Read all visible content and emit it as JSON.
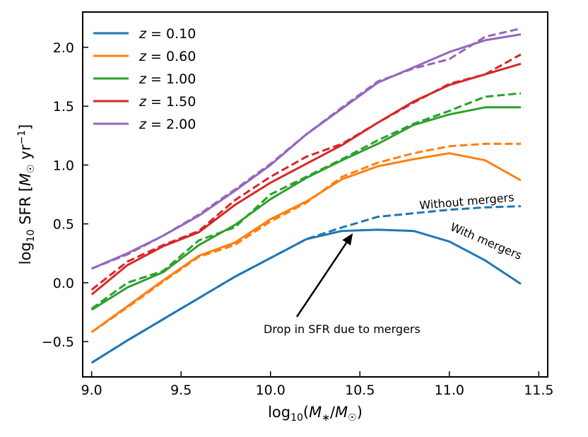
{
  "chart_data": {
    "type": "line",
    "xlabel": "log₁₀(M*/M☉)",
    "ylabel": "log₁₀ SFR [M☉ yr⁻¹]",
    "xlim": [
      8.95,
      11.55
    ],
    "ylim": [
      -0.8,
      2.3
    ],
    "xticks": [
      9.0,
      9.5,
      10.0,
      10.5,
      11.0,
      11.5
    ],
    "xtick_labels": [
      "9.0",
      "9.5",
      "10.0",
      "10.5",
      "11.0",
      "11.5"
    ],
    "yticks": [
      -0.5,
      0.0,
      0.5,
      1.0,
      1.5,
      2.0
    ],
    "ytick_labels": [
      "−0.5",
      "0.0",
      "0.5",
      "1.0",
      "1.5",
      "2.0"
    ],
    "grid": false,
    "legend_position": "top-left",
    "x": [
      9.0,
      9.2,
      9.4,
      9.6,
      9.8,
      10.0,
      10.2,
      10.4,
      10.6,
      10.8,
      11.0,
      11.2,
      11.4
    ],
    "series": [
      {
        "name": "z = 0.10",
        "color": "#1f77b4",
        "with_mergers": [
          -0.68,
          -0.49,
          -0.31,
          -0.13,
          0.05,
          0.21,
          0.37,
          0.44,
          0.45,
          0.44,
          0.35,
          0.19,
          -0.01
        ],
        "without_mergers": [
          -0.68,
          -0.49,
          -0.31,
          -0.13,
          0.05,
          0.21,
          0.37,
          0.47,
          0.56,
          0.59,
          0.62,
          0.64,
          0.65
        ]
      },
      {
        "name": "z = 0.60",
        "color": "#ff7f0e",
        "with_mergers": [
          -0.42,
          -0.2,
          0.02,
          0.23,
          0.34,
          0.54,
          0.69,
          0.88,
          0.99,
          1.05,
          1.1,
          1.04,
          0.87
        ],
        "without_mergers": [
          -0.42,
          -0.21,
          0.01,
          0.22,
          0.32,
          0.52,
          0.68,
          0.9,
          1.02,
          1.1,
          1.16,
          1.18,
          1.18
        ]
      },
      {
        "name": "z = 1.00",
        "color": "#2ca02c",
        "with_mergers": [
          -0.23,
          -0.04,
          0.09,
          0.32,
          0.49,
          0.71,
          0.89,
          1.04,
          1.18,
          1.34,
          1.43,
          1.49,
          1.49
        ],
        "without_mergers": [
          -0.22,
          0.0,
          0.1,
          0.36,
          0.47,
          0.75,
          0.9,
          1.05,
          1.21,
          1.35,
          1.46,
          1.58,
          1.61
        ]
      },
      {
        "name": "z = 1.50",
        "color": "#d62728",
        "with_mergers": [
          -0.1,
          0.15,
          0.31,
          0.43,
          0.66,
          0.85,
          1.01,
          1.17,
          1.36,
          1.54,
          1.68,
          1.77,
          1.86
        ],
        "without_mergers": [
          -0.06,
          0.18,
          0.32,
          0.44,
          0.7,
          0.9,
          1.07,
          1.18,
          1.36,
          1.53,
          1.69,
          1.77,
          1.94
        ]
      },
      {
        "name": "z = 2.00",
        "color": "#9467bd",
        "with_mergers": [
          0.12,
          0.25,
          0.4,
          0.57,
          0.78,
          1.0,
          1.26,
          1.48,
          1.7,
          1.83,
          1.96,
          2.06,
          2.11
        ],
        "without_mergers": [
          0.12,
          0.24,
          0.4,
          0.58,
          0.79,
          1.01,
          1.26,
          1.49,
          1.71,
          1.82,
          1.9,
          2.09,
          2.16
        ]
      }
    ],
    "annotations": {
      "without_label": "Without mergers",
      "with_label": "With mergers",
      "drop_label": "Drop in SFR due to mergers",
      "arrow_target": [
        10.46,
        0.42
      ]
    }
  }
}
